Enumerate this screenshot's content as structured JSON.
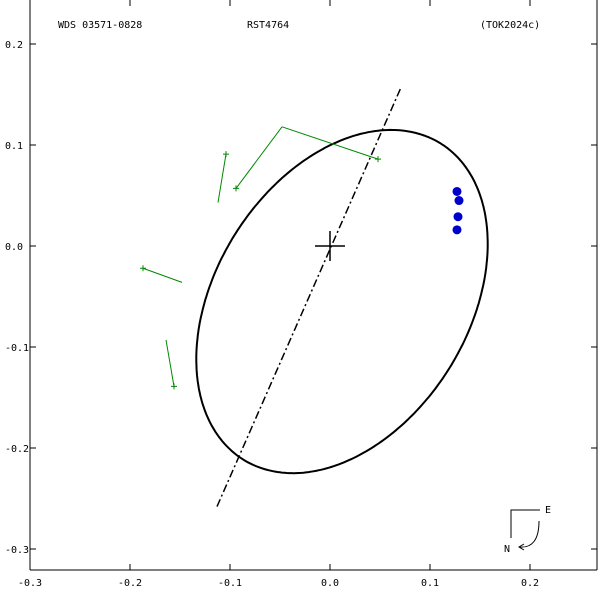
{
  "header": {
    "left": "WDS 03571-0828",
    "center": "RST4764",
    "right": "(TOK2024c)"
  },
  "compass": {
    "east": "E",
    "north": "N"
  },
  "chart_data": {
    "type": "scatter",
    "title": "RST4764",
    "xlabel": "",
    "ylabel": "",
    "xlim": [
      -0.3,
      0.27
    ],
    "ylim": [
      -0.335,
      0.2
    ],
    "x_ticks": [
      "-0.3",
      "-0.2",
      "-0.1",
      "0.0",
      "0.1",
      "0.2"
    ],
    "y_ticks": [
      "0.2",
      "0.1",
      "0.0",
      "-0.1",
      "-0.2",
      "-0.3"
    ],
    "grid": false,
    "primary_star": {
      "x": 0.0,
      "y": 0.0
    },
    "orbit_ellipse": {
      "center": {
        "x": 0.012,
        "y": -0.055
      },
      "semi_major": 0.185,
      "semi_minor": 0.126,
      "angle_deg": 57.3,
      "color": "#000000"
    },
    "line_of_nodes": {
      "from": {
        "x": -0.113,
        "y": -0.258
      },
      "to": {
        "x": 0.071,
        "y": 0.157
      }
    },
    "observations": [
      {
        "x": 0.048,
        "y": 0.086,
        "orbit_x": -0.048,
        "orbit_y": 0.118
      },
      {
        "x": -0.094,
        "y": 0.057,
        "orbit_x": -0.048,
        "orbit_y": 0.118
      },
      {
        "x": -0.104,
        "y": 0.091,
        "orbit_x": -0.112,
        "orbit_y": 0.043
      },
      {
        "x": -0.187,
        "y": -0.022,
        "orbit_x": -0.148,
        "orbit_y": -0.036
      },
      {
        "x": -0.156,
        "y": -0.139,
        "orbit_x": -0.164,
        "orbit_y": -0.093
      }
    ],
    "observation_color": "#008800",
    "recent_points": [
      {
        "x": 0.127,
        "y": 0.054
      },
      {
        "x": 0.129,
        "y": 0.045
      },
      {
        "x": 0.128,
        "y": 0.029
      },
      {
        "x": 0.127,
        "y": 0.016
      }
    ],
    "recent_color": "#0000cc"
  }
}
